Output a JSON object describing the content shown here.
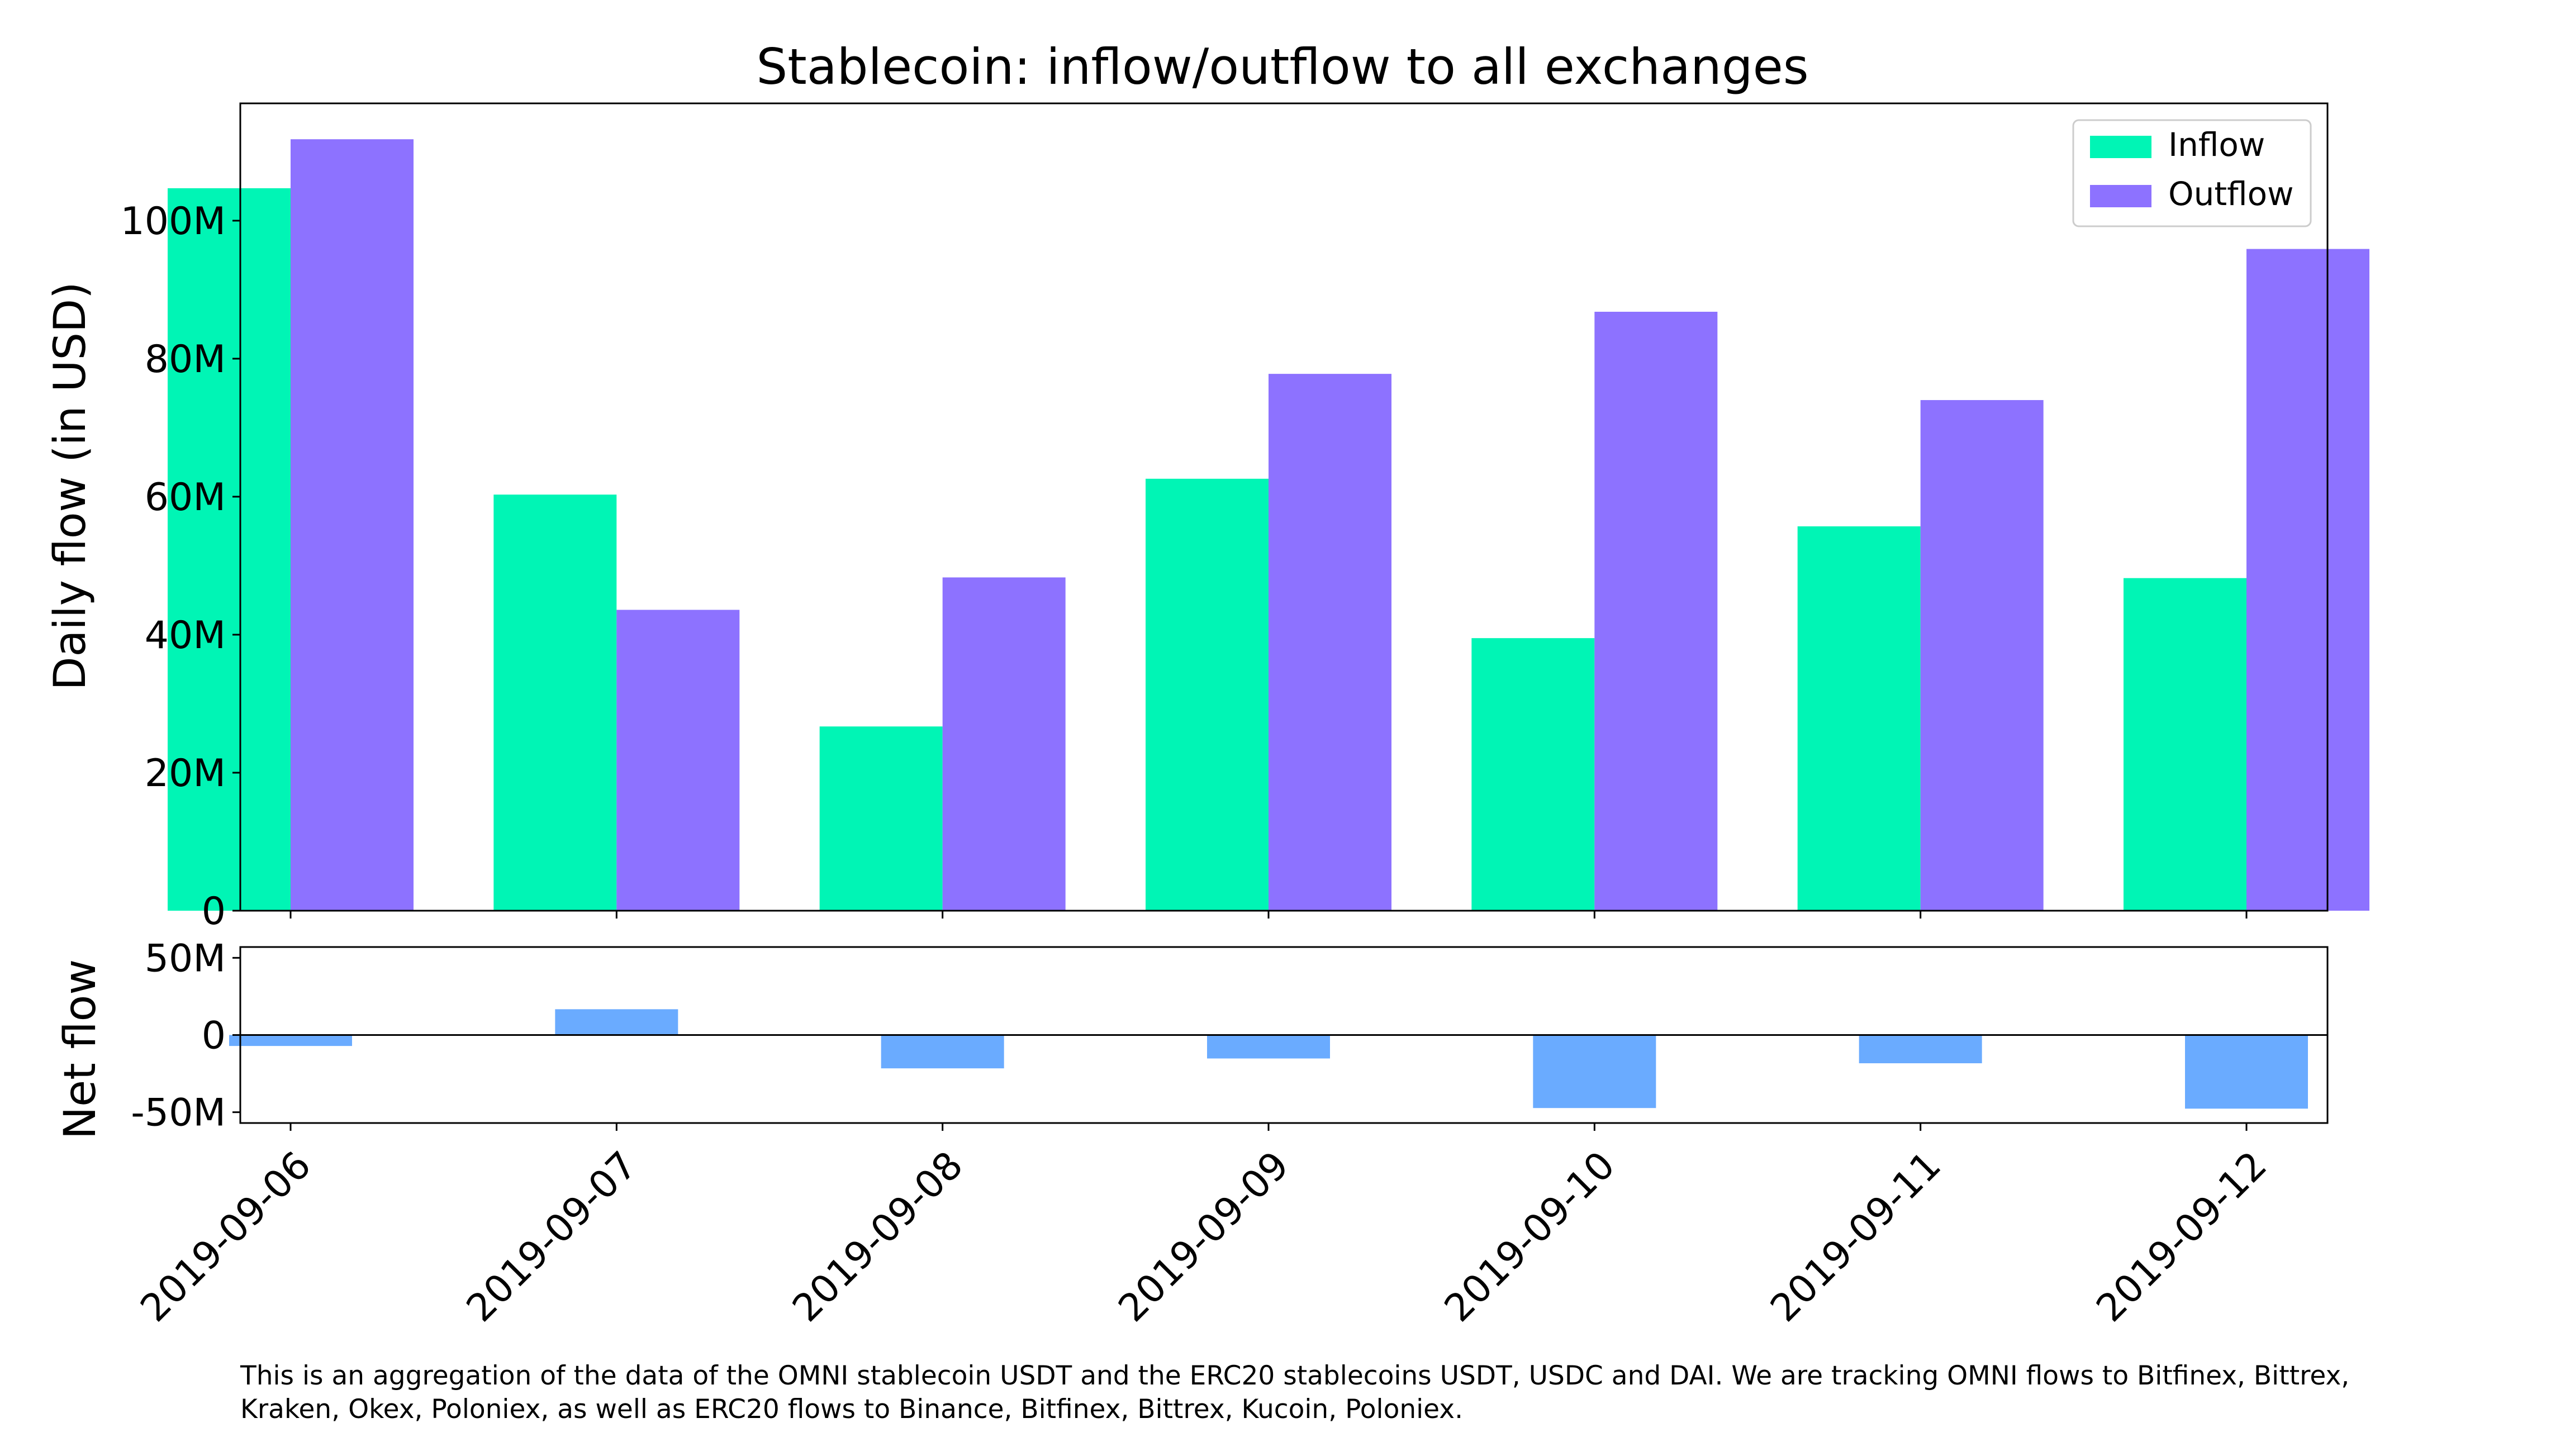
{
  "chart_data": {
    "type": "bar",
    "title": "Stablecoin: inflow/outflow to all exchanges",
    "categories": [
      "2019-09-06",
      "2019-09-07",
      "2019-09-08",
      "2019-09-09",
      "2019-09-10",
      "2019-09-11",
      "2019-09-12"
    ],
    "series": [
      {
        "name": "Inflow",
        "color": "#00F5B5",
        "values": [
          104.7,
          60.3,
          26.7,
          62.6,
          39.5,
          55.7,
          48.2
        ]
      },
      {
        "name": "Outflow",
        "color": "#8D72FF",
        "values": [
          111.8,
          43.6,
          48.3,
          77.8,
          86.8,
          74.0,
          95.9
        ]
      }
    ],
    "main_panel": {
      "ylabel": "Daily flow (in USD)",
      "ylim": [
        0,
        117
      ],
      "unit": "M USD",
      "yticks": [
        0,
        20,
        40,
        60,
        80,
        100
      ],
      "ytick_labels": [
        "0",
        "20M",
        "40M",
        "60M",
        "80M",
        "100M"
      ],
      "legend": "top-right",
      "grid": false
    },
    "net_panel": {
      "ylabel": "Net flow",
      "color": "#6AABFF",
      "values": [
        -7.1,
        16.7,
        -21.6,
        -15.2,
        -47.3,
        -18.3,
        -47.7
      ],
      "ylim": [
        -57,
        57
      ],
      "yticks": [
        -50,
        0,
        50
      ],
      "ytick_labels": [
        "-50M",
        "0",
        "50M"
      ],
      "zero_line": true
    },
    "footnote": "This is an aggregation of the data of the OMNI stablecoin USDT and the ERC20 stablecoins USDT, USDC and DAI. We are tracking OMNI flows to Bitfinex, Bittrex, Kraken, Okex, Poloniex, as well as ERC20 flows to Binance, Bitfinex, Bittrex, Kucoin, Poloniex."
  }
}
